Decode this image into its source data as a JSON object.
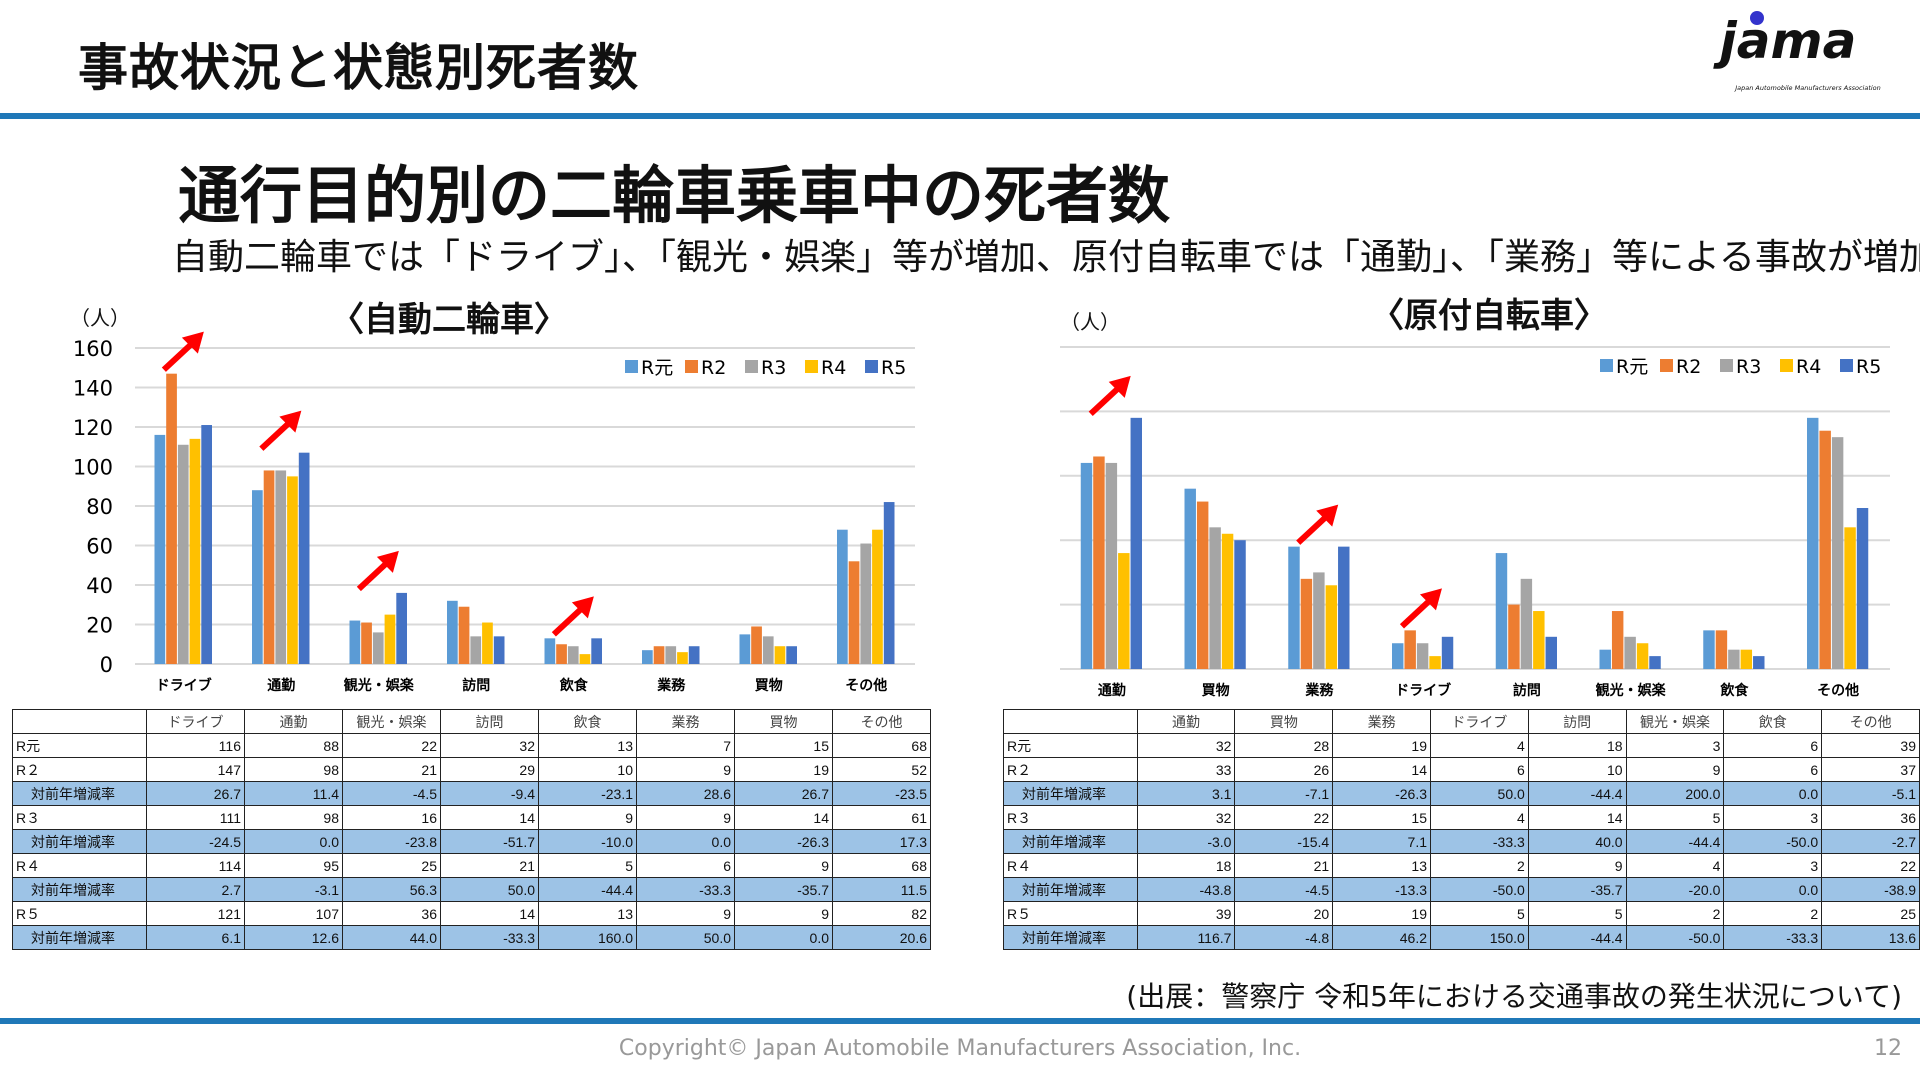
{
  "header": {
    "title": "事故状況と状態別死者数",
    "logo_text": "jama",
    "logo_subtext": "Japan Automobile Manufacturers Association"
  },
  "main": {
    "title": "通行目的別の二輪車乗車中の死者数",
    "subtitle": "自動二輪車では「ドライブ」、「観光・娯楽」等が増加、原付自転車では「通勤」、「業務」等による事故が増加"
  },
  "colors": {
    "R元": "#5B9BD5",
    "R2": "#ED7D31",
    "R3": "#A5A5A5",
    "R4": "#FFC000",
    "R5": "#4472C4",
    "arrow": "#FF0000"
  },
  "chart_data": [
    {
      "type": "bar",
      "title": "〈自動二輪車〉",
      "ylabel": "（人）",
      "ylim": [
        0,
        160
      ],
      "yticks": [
        0,
        20,
        40,
        60,
        80,
        100,
        120,
        140,
        160
      ],
      "grid": true,
      "legend": "top-right",
      "categories": [
        "ドライブ",
        "通勤",
        "観光・娯楽",
        "訪問",
        "飲食",
        "業務",
        "買物",
        "その他"
      ],
      "series": [
        {
          "name": "R元",
          "values": [
            116,
            88,
            22,
            32,
            13,
            7,
            15,
            68
          ]
        },
        {
          "name": "R2",
          "values": [
            147,
            98,
            21,
            29,
            10,
            9,
            19,
            52
          ]
        },
        {
          "name": "R3",
          "values": [
            111,
            98,
            16,
            14,
            9,
            9,
            14,
            61
          ]
        },
        {
          "name": "R4",
          "values": [
            114,
            95,
            25,
            21,
            5,
            6,
            9,
            68
          ]
        },
        {
          "name": "R5",
          "values": [
            121,
            107,
            36,
            14,
            13,
            9,
            9,
            82
          ]
        }
      ],
      "increase_arrows": [
        "ドライブ",
        "通勤",
        "観光・娯楽",
        "飲食"
      ]
    },
    {
      "type": "bar",
      "title": "〈原付自転車〉",
      "ylabel": "（人）",
      "ylim": [
        0,
        50
      ],
      "yticks": [
        0,
        10,
        20,
        30,
        40,
        50
      ],
      "grid": true,
      "legend": "top-right",
      "categories": [
        "通勤",
        "買物",
        "業務",
        "ドライブ",
        "訪問",
        "観光・娯楽",
        "飲食",
        "その他"
      ],
      "series": [
        {
          "name": "R元",
          "values": [
            32,
            28,
            19,
            4,
            18,
            3,
            6,
            39
          ]
        },
        {
          "name": "R2",
          "values": [
            33,
            26,
            14,
            6,
            10,
            9,
            6,
            37
          ]
        },
        {
          "name": "R3",
          "values": [
            32,
            22,
            15,
            4,
            14,
            5,
            3,
            36
          ]
        },
        {
          "name": "R4",
          "values": [
            18,
            21,
            13,
            2,
            9,
            4,
            3,
            22
          ]
        },
        {
          "name": "R5",
          "values": [
            39,
            20,
            19,
            5,
            5,
            2,
            2,
            25
          ]
        }
      ],
      "increase_arrows": [
        "通勤",
        "業務",
        "ドライブ"
      ]
    }
  ],
  "tables": [
    {
      "headers": [
        "",
        "ドライブ",
        "通勤",
        "観光・娯楽",
        "訪問",
        "飲食",
        "業務",
        "買物",
        "その他"
      ],
      "rows": [
        {
          "label": "R元",
          "values": [
            "116",
            "88",
            "22",
            "32",
            "13",
            "7",
            "15",
            "68"
          ],
          "rate": false
        },
        {
          "label": "R２",
          "values": [
            "147",
            "98",
            "21",
            "29",
            "10",
            "9",
            "19",
            "52"
          ],
          "rate": false
        },
        {
          "label": "対前年増減率",
          "values": [
            "26.7",
            "11.4",
            "-4.5",
            "-9.4",
            "-23.1",
            "28.6",
            "26.7",
            "-23.5"
          ],
          "rate": true
        },
        {
          "label": "R３",
          "values": [
            "111",
            "98",
            "16",
            "14",
            "9",
            "9",
            "14",
            "61"
          ],
          "rate": false
        },
        {
          "label": "対前年増減率",
          "values": [
            "-24.5",
            "0.0",
            "-23.8",
            "-51.7",
            "-10.0",
            "0.0",
            "-26.3",
            "17.3"
          ],
          "rate": true
        },
        {
          "label": "R４",
          "values": [
            "114",
            "95",
            "25",
            "21",
            "5",
            "6",
            "9",
            "68"
          ],
          "rate": false
        },
        {
          "label": "対前年増減率",
          "values": [
            "2.7",
            "-3.1",
            "56.3",
            "50.0",
            "-44.4",
            "-33.3",
            "-35.7",
            "11.5"
          ],
          "rate": true
        },
        {
          "label": "R５",
          "values": [
            "121",
            "107",
            "36",
            "14",
            "13",
            "9",
            "9",
            "82"
          ],
          "rate": false
        },
        {
          "label": "対前年増減率",
          "values": [
            "6.1",
            "12.6",
            "44.0",
            "-33.3",
            "160.0",
            "50.0",
            "0.0",
            "20.6"
          ],
          "rate": true
        }
      ]
    },
    {
      "headers": [
        "",
        "通勤",
        "買物",
        "業務",
        "ドライブ",
        "訪問",
        "観光・娯楽",
        "飲食",
        "その他"
      ],
      "rows": [
        {
          "label": "R元",
          "values": [
            "32",
            "28",
            "19",
            "4",
            "18",
            "3",
            "6",
            "39"
          ],
          "rate": false
        },
        {
          "label": "R２",
          "values": [
            "33",
            "26",
            "14",
            "6",
            "10",
            "9",
            "6",
            "37"
          ],
          "rate": false
        },
        {
          "label": "対前年増減率",
          "values": [
            "3.1",
            "-7.1",
            "-26.3",
            "50.0",
            "-44.4",
            "200.0",
            "0.0",
            "-5.1"
          ],
          "rate": true
        },
        {
          "label": "R３",
          "values": [
            "32",
            "22",
            "15",
            "4",
            "14",
            "5",
            "3",
            "36"
          ],
          "rate": false
        },
        {
          "label": "対前年増減率",
          "values": [
            "-3.0",
            "-15.4",
            "7.1",
            "-33.3",
            "40.0",
            "-44.4",
            "-50.0",
            "-2.7"
          ],
          "rate": true
        },
        {
          "label": "R４",
          "values": [
            "18",
            "21",
            "13",
            "2",
            "9",
            "4",
            "3",
            "22"
          ],
          "rate": false
        },
        {
          "label": "対前年増減率",
          "values": [
            "-43.8",
            "-4.5",
            "-13.3",
            "-50.0",
            "-35.7",
            "-20.0",
            "0.0",
            "-38.9"
          ],
          "rate": true
        },
        {
          "label": "R５",
          "values": [
            "39",
            "20",
            "19",
            "5",
            "5",
            "2",
            "2",
            "25"
          ],
          "rate": false
        },
        {
          "label": "対前年増減率",
          "values": [
            "116.7",
            "-4.8",
            "46.2",
            "150.0",
            "-44.4",
            "-50.0",
            "-33.3",
            "13.6"
          ],
          "rate": true
        }
      ]
    }
  ],
  "source": "(出展：警察庁 令和5年における交通事故の発生状況について)",
  "footer": {
    "copyright": "Copyright© Japan Automobile Manufacturers Association, Inc.",
    "page": "12"
  }
}
